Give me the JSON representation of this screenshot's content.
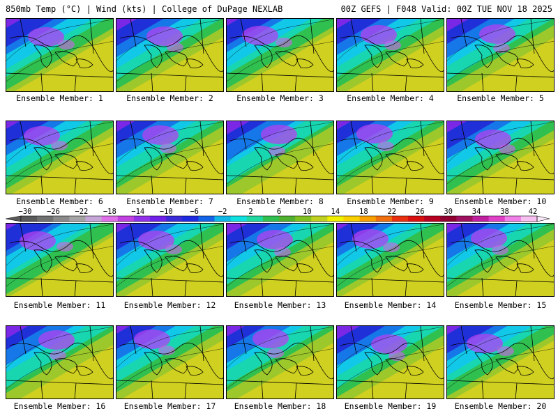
{
  "header": {
    "left": "850mb Temp (°C) | Wind (kts) | College of DuPage NEXLAB",
    "right": "00Z GEFS | F048 Valid: 00Z TUE NOV 18 2025"
  },
  "panel_caption_prefix": "Ensemble Member: ",
  "members": [
    1,
    2,
    3,
    4,
    5,
    6,
    7,
    8,
    9,
    10,
    11,
    12,
    13,
    14,
    15,
    16,
    17,
    18,
    19,
    20
  ],
  "colorbar": {
    "labels": [
      "−30",
      "−26",
      "−22",
      "−18",
      "−14",
      "−10",
      "−6",
      "−2",
      "2",
      "6",
      "10",
      "14",
      "18",
      "22",
      "26",
      "30",
      "34",
      "38",
      "42"
    ],
    "colors": [
      "#5a5a5a",
      "#707070",
      "#8a8a8a",
      "#a4a4a4",
      "#c6a6d8",
      "#e070e8",
      "#c040e0",
      "#9030e8",
      "#7020e8",
      "#3a2ad8",
      "#1e2ae0",
      "#1464e8",
      "#10b8e8",
      "#10e0e0",
      "#20d8a0",
      "#30c050",
      "#50b030",
      "#80c020",
      "#c0d020",
      "#f0f000",
      "#f8d000",
      "#f8a000",
      "#f07010",
      "#e83010",
      "#d81010",
      "#b80020",
      "#900030",
      "#a01060",
      "#c020a0",
      "#e040c8",
      "#f080e8",
      "#f8c0f0"
    ]
  }
}
